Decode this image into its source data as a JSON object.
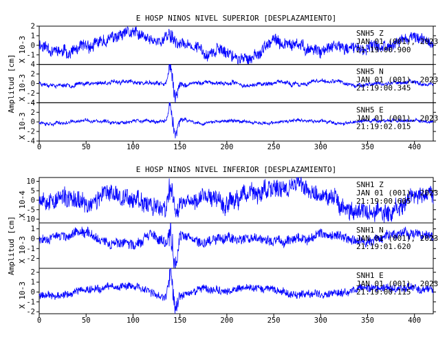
{
  "chart_data": [
    {
      "type": "line",
      "title": "E HOSP NINOS NIVEL SUPERIOR [DESPLAZAMIENTO]",
      "ylabel": "Amplitud [cm]",
      "x_ticks": [
        0,
        50,
        100,
        150,
        200,
        250,
        300,
        350,
        400
      ],
      "xlim": [
        0,
        420
      ],
      "series": [
        {
          "scale": "X 10-3",
          "ylim": [
            -2,
            2
          ],
          "y_ticks": [
            -1,
            0,
            1,
            2
          ],
          "color": "#0000ff",
          "annotation": [
            "SNH5  Z",
            "JAN 01 (001), 2023",
            "21:19:00.900"
          ],
          "noise_amp": 0.55,
          "peak_amp": 1.0,
          "lf_amp": 0.5,
          "seed": 11,
          "x": [
            0,
            25,
            50,
            75,
            100,
            120,
            135,
            140,
            145,
            150,
            175,
            200,
            220,
            250,
            275,
            300,
            325,
            350,
            375,
            400,
            420
          ],
          "values": [
            0.2,
            -0.8,
            -0.4,
            0.6,
            1.2,
            0.3,
            0.8,
            1.3,
            0.5,
            0.2,
            -0.5,
            -0.6,
            -1.6,
            0.3,
            -0.2,
            -0.4,
            -0.3,
            -0.5,
            0.2,
            0.9,
            0.1
          ]
        },
        {
          "scale": "X 10-3",
          "ylim": [
            -4,
            4
          ],
          "y_ticks": [
            -4,
            -2,
            0,
            2,
            4
          ],
          "color": "#0000ff",
          "annotation": [
            "SNH5  N",
            "JAN 01 (001), 2023",
            "21:19:00.345"
          ],
          "noise_amp": 0.35,
          "peak_amp": 4.0,
          "lf_amp": 0.4,
          "seed": 23,
          "x": [
            0,
            25,
            50,
            75,
            100,
            120,
            135,
            140,
            145,
            150,
            175,
            200,
            225,
            250,
            275,
            300,
            325,
            350,
            375,
            400,
            420
          ],
          "values": [
            0.1,
            -0.3,
            0.1,
            0.3,
            0.2,
            0.1,
            -0.2,
            3.8,
            -3.6,
            -0.4,
            0.3,
            0.1,
            -0.3,
            0.2,
            -0.2,
            0.4,
            0.1,
            -0.3,
            0.2,
            0.3,
            0.0
          ]
        },
        {
          "scale": "X 10-3",
          "ylim": [
            -4,
            4
          ],
          "y_ticks": [
            -4,
            -2,
            0,
            2,
            4
          ],
          "color": "#0000ff",
          "annotation": [
            "SNH5  E",
            "JAN 01 (001), 2023",
            "21:19:02.015"
          ],
          "noise_amp": 0.3,
          "peak_amp": 3.8,
          "lf_amp": 0.35,
          "seed": 37,
          "x": [
            0,
            25,
            50,
            75,
            100,
            120,
            135,
            140,
            145,
            150,
            175,
            200,
            225,
            250,
            275,
            300,
            325,
            350,
            375,
            400,
            420
          ],
          "values": [
            0.0,
            -0.2,
            0.2,
            -0.1,
            0.2,
            0.1,
            -0.1,
            3.4,
            -3.2,
            0.3,
            -0.2,
            0.2,
            0.1,
            -0.3,
            0.2,
            0.1,
            -0.2,
            0.2,
            0.3,
            0.2,
            0.0
          ]
        }
      ]
    },
    {
      "type": "line",
      "title": "E HOSP NINOS NIVEL INFERIOR [DESPLAZAMIENTO]",
      "ylabel": "Amplitud [cm]",
      "x_ticks": [
        0,
        50,
        100,
        150,
        200,
        250,
        300,
        350,
        400
      ],
      "xlim": [
        0,
        420
      ],
      "series": [
        {
          "scale": "X 10-4",
          "ylim": [
            -12,
            12
          ],
          "y_ticks": [
            -10,
            -5,
            0,
            5,
            10
          ],
          "color": "#0000ff",
          "annotation": [
            "SNH1  Z",
            "JAN 01 (001), 2023",
            "21:19:00.605"
          ],
          "noise_amp": 4.5,
          "peak_amp": 9.0,
          "lf_amp": 3.0,
          "seed": 53,
          "x": [
            0,
            25,
            50,
            75,
            100,
            120,
            135,
            140,
            145,
            150,
            175,
            200,
            225,
            250,
            275,
            300,
            325,
            350,
            375,
            400,
            420
          ],
          "values": [
            2,
            1,
            -3,
            4,
            2,
            -3,
            -6,
            9,
            -10,
            -2,
            4,
            -2,
            3,
            5,
            8,
            2,
            -3,
            -7,
            -5,
            3,
            1
          ]
        },
        {
          "scale": "X 10-3",
          "ylim": [
            -3,
            1.6
          ],
          "y_ticks": [
            -2,
            -1,
            0,
            1
          ],
          "color": "#0000ff",
          "annotation": [
            "SNH1  N",
            "JAN 01 (001), 2023",
            "21:19:01.620"
          ],
          "noise_amp": 0.45,
          "peak_amp": 2.6,
          "lf_amp": 0.35,
          "seed": 67,
          "x": [
            0,
            25,
            50,
            75,
            100,
            120,
            135,
            140,
            145,
            150,
            175,
            200,
            225,
            250,
            275,
            300,
            325,
            350,
            375,
            400,
            420
          ],
          "values": [
            0.1,
            0.3,
            0.6,
            -0.3,
            -0.5,
            0.2,
            -0.7,
            1.0,
            -2.6,
            0.4,
            -0.2,
            0.3,
            0.1,
            -0.4,
            -0.1,
            0.5,
            0.2,
            -0.3,
            0.4,
            0.5,
            0.2
          ]
        },
        {
          "scale": "X 10-3",
          "ylim": [
            -2.2,
            2.4
          ],
          "y_ticks": [
            -2,
            -1,
            0,
            1,
            2
          ],
          "color": "#0000ff",
          "annotation": [
            "SNH1  E",
            "JAN 01 (001), 2023",
            "21:19:00.115"
          ],
          "noise_amp": 0.35,
          "peak_amp": 2.2,
          "lf_amp": 0.3,
          "seed": 79,
          "x": [
            0,
            25,
            50,
            75,
            100,
            120,
            135,
            140,
            145,
            150,
            175,
            200,
            225,
            250,
            275,
            300,
            325,
            350,
            375,
            400,
            420
          ],
          "values": [
            -0.3,
            -0.2,
            0.2,
            0.5,
            0.6,
            -0.2,
            -0.5,
            2.2,
            -2.0,
            -0.4,
            0.3,
            -0.1,
            0.4,
            0.2,
            -0.3,
            -0.2,
            0.1,
            0.5,
            0.3,
            0.6,
            0.2
          ]
        }
      ]
    }
  ]
}
